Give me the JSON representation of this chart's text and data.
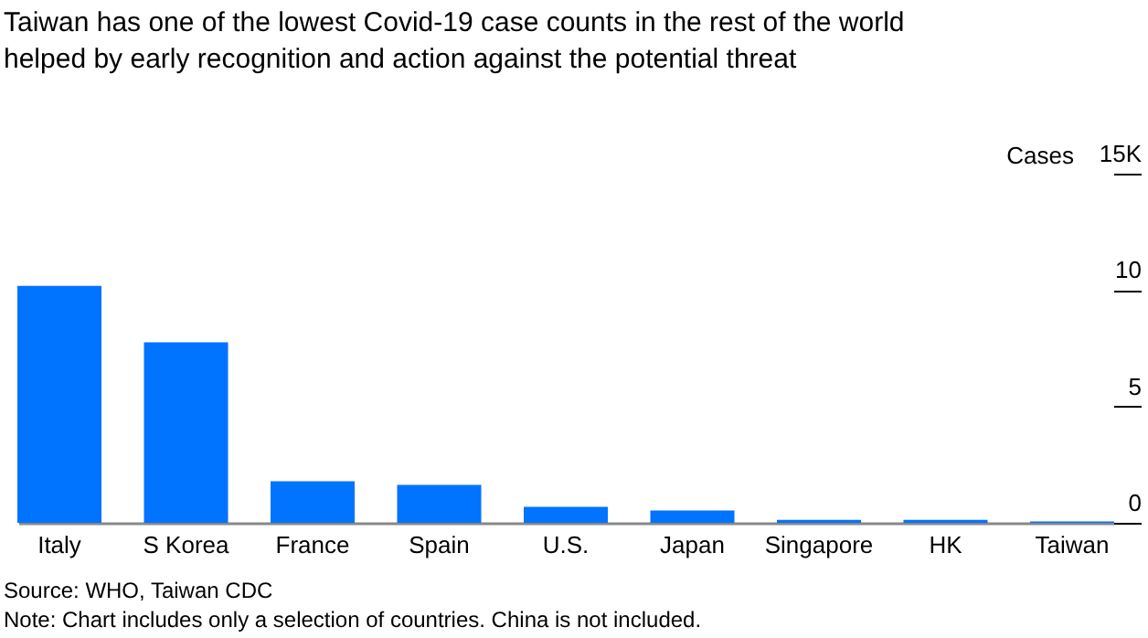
{
  "chart_data": {
    "type": "bar",
    "title": "Taiwan has one of the lowest Covid-19 case counts in the rest of the world\nhelped by early recognition and action against the potential threat",
    "ylabel": "Cases",
    "categories": [
      "Italy",
      "S Korea",
      "France",
      "Spain",
      "U.S.",
      "Japan",
      "Singapore",
      "HK",
      "Taiwan"
    ],
    "values": [
      10.18,
      7.76,
      1.79,
      1.63,
      0.69,
      0.53,
      0.13,
      0.13,
      0.06
    ],
    "color": "#0073ff",
    "ylim": [
      0,
      15
    ],
    "yticks": [
      0,
      5,
      10,
      {
        "value": 15,
        "label": "15K"
      }
    ],
    "grid": false,
    "annotations": [
      "Source: WHO, Taiwan CDC",
      "Note: Chart includes only a selection of countries. China is not included."
    ]
  }
}
